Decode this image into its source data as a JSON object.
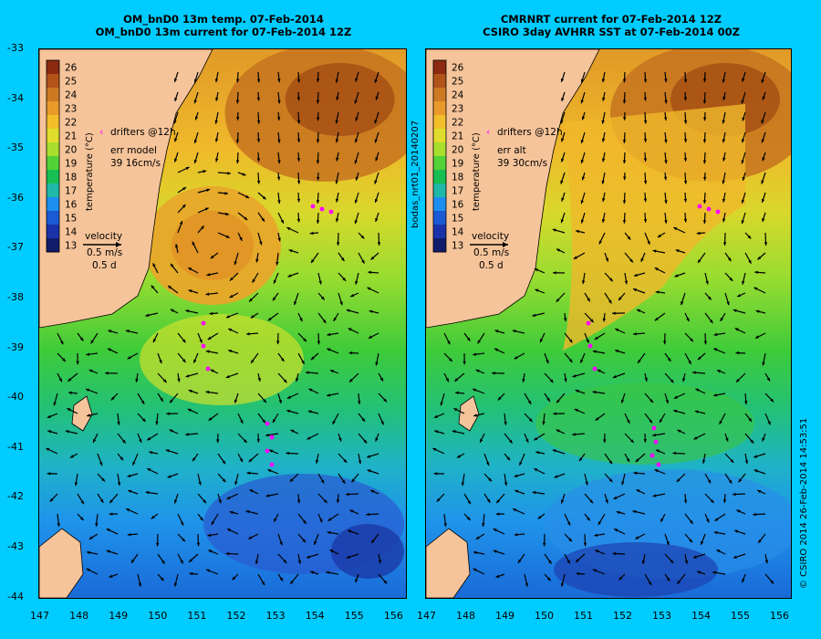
{
  "left_panel": {
    "title_line1": "OM_bnD0 13m temp. 07-Feb-2014",
    "title_line2": "OM_bnD0 13m current for 07-Feb-2014 12Z",
    "drifters_label": "drifters @12h",
    "err_label": "err model",
    "err_value": "39 16cm/s",
    "velocity_label": "velocity",
    "velocity_scale": "0.5 m/s",
    "velocity_time": "0.5 d"
  },
  "right_panel": {
    "title_line1": "CMRNRT current for 07-Feb-2014 12Z",
    "title_line2": "CSIRO 3day AVHRR SST at 07-Feb-2014 00Z",
    "drifters_label": "drifters @12h",
    "err_label": "err alt",
    "err_value": "39 30cm/s",
    "velocity_label": "velocity",
    "velocity_scale": "0.5 m/s",
    "velocity_time": "0.5 d"
  },
  "colorbar": {
    "title": "temperature (°C)",
    "ticks": [
      "26",
      "25",
      "24",
      "23",
      "22",
      "21",
      "20",
      "19",
      "18",
      "17",
      "16",
      "15",
      "14",
      "13"
    ],
    "colors": [
      "#8b2a10",
      "#b2531a",
      "#cc7a22",
      "#e89a2a",
      "#f2be2a",
      "#e0dd2c",
      "#a8de2e",
      "#52d236",
      "#18be52",
      "#20b8a6",
      "#1e8ef0",
      "#1a5ad4",
      "#1a32a8",
      "#101c6a"
    ]
  },
  "y_ticks": [
    "-33",
    "-34",
    "-35",
    "-36",
    "-37",
    "-38",
    "-39",
    "-40",
    "-41",
    "-42",
    "-43",
    "-44"
  ],
  "x_ticks": [
    "147",
    "148",
    "149",
    "150",
    "151",
    "152",
    "153",
    "154",
    "155",
    "156"
  ],
  "middle_label": "bodas_nrt01_20140207",
  "copyright": "© CSIRO 2014   26-Feb-2014 14:53:51",
  "colors": {
    "background": "#00ccff",
    "land": "#f6c49a",
    "drifter": "#ff00ff"
  }
}
